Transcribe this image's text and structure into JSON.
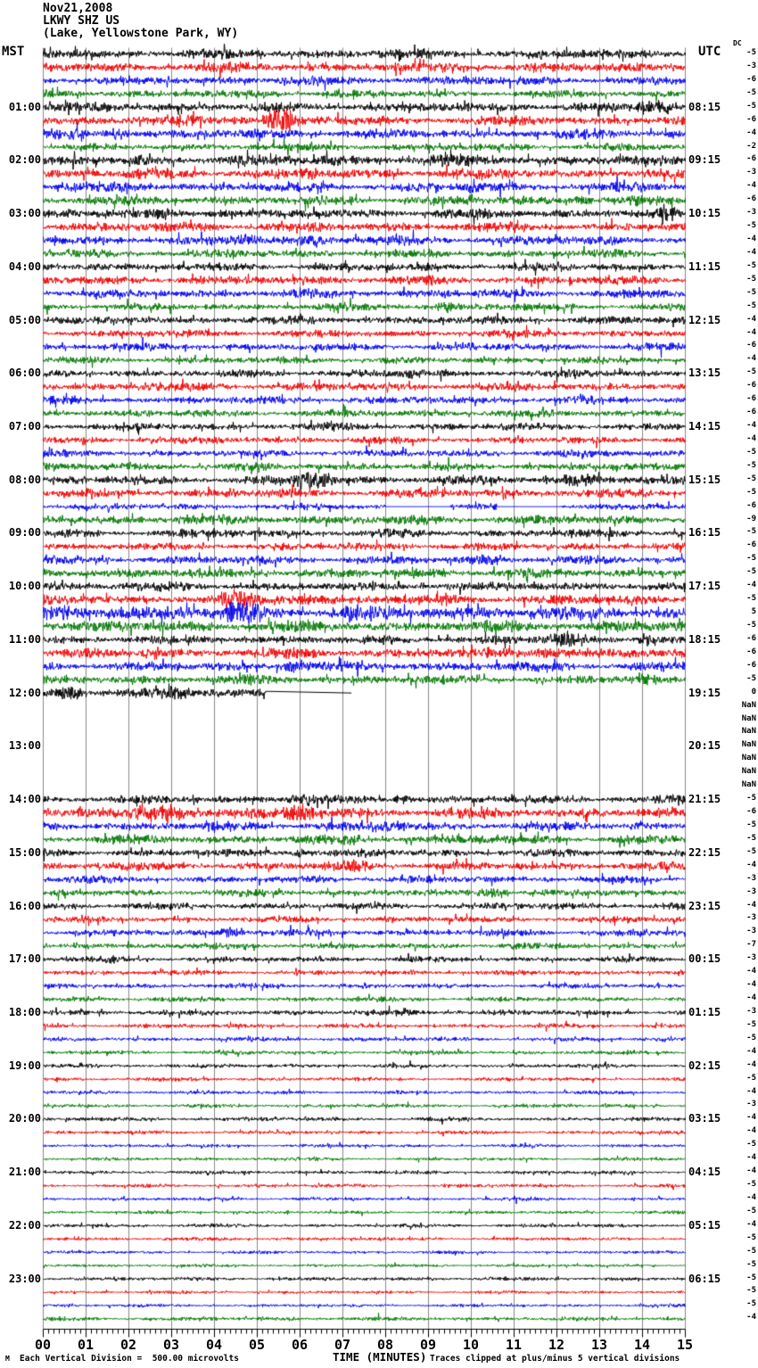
{
  "title": {
    "date": "Nov21,2008",
    "station": "LKWY SHZ US",
    "location": "(Lake, Yellowstone Park, WY)"
  },
  "axes": {
    "left_header": "MST",
    "right_header": "UTC",
    "dc_header": "DC",
    "x_title": "TIME (MINUTES)",
    "x_ticks": [
      "00",
      "01",
      "02",
      "03",
      "04",
      "05",
      "06",
      "07",
      "08",
      "09",
      "10",
      "11",
      "12",
      "13",
      "14",
      "15"
    ]
  },
  "footer": {
    "scale_note": "Each Vertical Division =  500.00 microvolts",
    "clip_note": "Traces clipped at plus/minus 5 vertical divisions",
    "watermark": "M"
  },
  "colors": {
    "trace_cycle": [
      "#000000",
      "#ee0000",
      "#0000ee",
      "#007700"
    ],
    "grid": "#888888",
    "axis": "#000000"
  },
  "chart_data": {
    "type": "line",
    "subtype": "seismogram_helicorder",
    "title": "LKWY SHZ US (Lake, Yellowstone Park, WY) Nov21,2008",
    "xlabel": "TIME (MINUTES)",
    "x_range": [
      0,
      15
    ],
    "minutes_per_line": 15,
    "left_timezone": "MST",
    "right_timezone": "UTC",
    "vertical_division_microvolts": "500.00",
    "clipping": "plus/minus 5 vertical divisions",
    "grid": true,
    "rows": [
      {
        "dc": "-5",
        "amp": 3.2
      },
      {
        "dc": "-3",
        "amp": 3.0
      },
      {
        "dc": "-6",
        "amp": 2.8
      },
      {
        "dc": "-5",
        "amp": 2.4
      },
      {
        "mst": "01:00",
        "utc": "08:15",
        "dc": "-5",
        "amp": 3.0,
        "ev": [
          [
            13.7,
            15,
            5
          ]
        ]
      },
      {
        "dc": "-6",
        "amp": 3.2,
        "ev": [
          [
            4.0,
            5.1,
            2
          ],
          [
            5.1,
            6.0,
            9
          ]
        ]
      },
      {
        "dc": "-4",
        "amp": 3.0,
        "ev": [
          [
            1.3,
            2.1,
            3
          ]
        ]
      },
      {
        "dc": "-2",
        "amp": 2.4
      },
      {
        "mst": "02:00",
        "utc": "09:15",
        "dc": "-6",
        "amp": 3.4
      },
      {
        "dc": "-3",
        "amp": 3.2,
        "ev": [
          [
            5.9,
            6.5,
            3
          ]
        ]
      },
      {
        "dc": "-4",
        "amp": 3.0,
        "ev": [
          [
            9.8,
            10.4,
            4
          ]
        ]
      },
      {
        "dc": "-6",
        "amp": 3.0,
        "ev": [
          [
            12.3,
            12.9,
            4
          ]
        ]
      },
      {
        "mst": "03:00",
        "utc": "10:15",
        "dc": "-3",
        "amp": 3.0,
        "ev": [
          [
            3.8,
            4.4,
            4
          ],
          [
            14.2,
            15,
            4
          ]
        ]
      },
      {
        "dc": "-5",
        "amp": 3.0
      },
      {
        "dc": "-4",
        "amp": 3.0,
        "ev": [
          [
            4.3,
            5.1,
            4
          ],
          [
            5.9,
            6.6,
            4
          ]
        ]
      },
      {
        "dc": "-4",
        "amp": 2.6
      },
      {
        "mst": "04:00",
        "utc": "11:15",
        "dc": "-5",
        "amp": 2.6,
        "ev": [
          [
            8.8,
            9.4,
            3
          ]
        ]
      },
      {
        "dc": "-5",
        "amp": 2.8
      },
      {
        "dc": "-5",
        "amp": 2.6
      },
      {
        "dc": "-5",
        "amp": 2.4,
        "ev": [
          [
            9.2,
            9.8,
            3
          ]
        ]
      },
      {
        "mst": "05:00",
        "utc": "12:15",
        "dc": "-4",
        "amp": 2.6
      },
      {
        "dc": "-4",
        "amp": 2.4
      },
      {
        "dc": "-6",
        "amp": 2.4
      },
      {
        "dc": "-4",
        "amp": 2.2
      },
      {
        "mst": "06:00",
        "utc": "13:15",
        "dc": "-5",
        "amp": 2.4,
        "ev": [
          [
            8.2,
            9.1,
            4
          ]
        ]
      },
      {
        "dc": "-6",
        "amp": 2.6,
        "ev": [
          [
            2.3,
            2.8,
            3
          ]
        ]
      },
      {
        "dc": "-6",
        "amp": 2.4
      },
      {
        "dc": "-6",
        "amp": 2.4
      },
      {
        "mst": "07:00",
        "utc": "14:15",
        "dc": "-4",
        "amp": 2.4
      },
      {
        "dc": "-4",
        "amp": 2.2
      },
      {
        "dc": "-5",
        "amp": 2.2
      },
      {
        "dc": "-5",
        "amp": 2.4
      },
      {
        "mst": "08:00",
        "utc": "15:15",
        "dc": "-5",
        "amp": 2.8,
        "ev": [
          [
            5.8,
            6.9,
            7
          ],
          [
            12.0,
            13.0,
            5
          ]
        ]
      },
      {
        "dc": "-5",
        "amp": 2.8
      },
      {
        "dc": "-6",
        "amp": 2.0,
        "gaps": [
          [
            8.0,
            9.5
          ],
          [
            10.6,
            12.1
          ]
        ]
      },
      {
        "dc": "-9",
        "amp": 3.0
      },
      {
        "mst": "09:00",
        "utc": "16:15",
        "dc": "-5",
        "amp": 2.6
      },
      {
        "dc": "-6",
        "amp": 2.4
      },
      {
        "dc": "-5",
        "amp": 2.6,
        "ev": [
          [
            10.1,
            10.8,
            3
          ]
        ]
      },
      {
        "dc": "-5",
        "amp": 3.0
      },
      {
        "mst": "10:00",
        "utc": "17:15",
        "dc": "-4",
        "amp": 2.8
      },
      {
        "dc": "-5",
        "amp": 3.2,
        "ev": [
          [
            4.0,
            5.2,
            7
          ],
          [
            5.2,
            7.2,
            3
          ]
        ]
      },
      {
        "dc": "5",
        "amp": 4.2,
        "ev": [
          [
            1.3,
            2.5,
            5
          ],
          [
            4.1,
            5.1,
            8
          ],
          [
            6.7,
            7.7,
            4
          ],
          [
            9.9,
            10.6,
            4
          ]
        ]
      },
      {
        "dc": "-5",
        "amp": 3.6
      },
      {
        "mst": "11:00",
        "utc": "18:15",
        "dc": "-6",
        "amp": 2.8,
        "ev": [
          [
            11.6,
            12.7,
            5
          ],
          [
            13.8,
            14.5,
            4
          ]
        ]
      },
      {
        "dc": "-6",
        "amp": 3.2,
        "ev": [
          [
            2.2,
            2.9,
            3
          ],
          [
            11.3,
            12.4,
            4
          ]
        ]
      },
      {
        "dc": "-6",
        "amp": 3.0,
        "ev": [
          [
            5.3,
            6.4,
            4
          ]
        ]
      },
      {
        "dc": "-5",
        "amp": 2.8,
        "ev": [
          [
            13.6,
            14.4,
            4
          ]
        ]
      },
      {
        "mst": "12:00",
        "utc": "19:15",
        "dc": "0",
        "amp": 3.0,
        "ev": [
          [
            0.2,
            1.1,
            5
          ],
          [
            2.5,
            3.5,
            5
          ]
        ],
        "end": 5.2,
        "flat_to": 7.2
      },
      {
        "dc": "NaN",
        "amp": 0,
        "blank": true
      },
      {
        "dc": "NaN",
        "amp": 0,
        "blank": true
      },
      {
        "dc": "NaN",
        "amp": 0,
        "blank": true
      },
      {
        "mst": "13:00",
        "utc": "20:15",
        "dc": "NaN",
        "amp": 0,
        "blank": true
      },
      {
        "dc": "NaN",
        "amp": 0,
        "blank": true
      },
      {
        "dc": "NaN",
        "amp": 0,
        "blank": true
      },
      {
        "dc": "NaN",
        "amp": 0,
        "blank": true
      },
      {
        "mst": "14:00",
        "utc": "21:15",
        "dc": "-5",
        "amp": 2.6,
        "ev": [
          [
            5.7,
            6.5,
            4
          ],
          [
            8.1,
            8.8,
            3
          ],
          [
            14.5,
            15,
            3
          ]
        ]
      },
      {
        "dc": "-6",
        "amp": 3.4,
        "ev": [
          [
            0,
            6.5,
            2.5
          ],
          [
            2.1,
            3.2,
            3
          ],
          [
            5.6,
            6.4,
            5
          ]
        ]
      },
      {
        "dc": "-5",
        "amp": 2.8,
        "ev": [
          [
            3.6,
            4.1,
            3
          ],
          [
            7.6,
            8.5,
            4
          ]
        ]
      },
      {
        "dc": "-5",
        "amp": 2.8,
        "ev": [
          [
            6.9,
            7.5,
            4
          ]
        ]
      },
      {
        "mst": "15:00",
        "utc": "22:15",
        "dc": "-5",
        "amp": 2.4,
        "ev": [
          [
            5.7,
            6.3,
            3
          ]
        ]
      },
      {
        "dc": "-4",
        "amp": 2.6,
        "ev": [
          [
            6.8,
            7.7,
            4
          ]
        ]
      },
      {
        "dc": "-3",
        "amp": 2.2
      },
      {
        "dc": "-3",
        "amp": 2.2,
        "ev": [
          [
            10.1,
            11.0,
            4
          ]
        ]
      },
      {
        "mst": "16:00",
        "utc": "23:15",
        "dc": "-4",
        "amp": 2.2
      },
      {
        "dc": "-3",
        "amp": 2.0
      },
      {
        "dc": "-3",
        "amp": 2.2,
        "ev": [
          [
            4.0,
            4.8,
            4
          ]
        ]
      },
      {
        "dc": "-7",
        "amp": 2.0
      },
      {
        "mst": "17:00",
        "utc": "00:15",
        "dc": "-3",
        "amp": 1.8,
        "ev": [
          [
            1.3,
            1.9,
            3
          ]
        ]
      },
      {
        "dc": "-4",
        "amp": 1.6
      },
      {
        "dc": "-4",
        "amp": 1.6
      },
      {
        "dc": "-4",
        "amp": 1.6
      },
      {
        "mst": "18:00",
        "utc": "01:15",
        "dc": "-3",
        "amp": 1.8,
        "ev": [
          [
            8.1,
            8.7,
            2
          ]
        ]
      },
      {
        "dc": "-5",
        "amp": 1.4
      },
      {
        "dc": "-5",
        "amp": 1.4
      },
      {
        "dc": "-4",
        "amp": 1.3
      },
      {
        "mst": "19:00",
        "utc": "02:15",
        "dc": "-4",
        "amp": 1.3
      },
      {
        "dc": "-5",
        "amp": 1.2
      },
      {
        "dc": "-4",
        "amp": 1.2
      },
      {
        "dc": "-3",
        "amp": 1.2
      },
      {
        "mst": "20:00",
        "utc": "03:15",
        "dc": "-4",
        "amp": 1.3
      },
      {
        "dc": "-4",
        "amp": 1.2
      },
      {
        "dc": "-5",
        "amp": 1.1
      },
      {
        "dc": "-4",
        "amp": 1.1
      },
      {
        "mst": "21:00",
        "utc": "04:15",
        "dc": "-4",
        "amp": 1.2
      },
      {
        "dc": "-5",
        "amp": 1.1
      },
      {
        "dc": "-4",
        "amp": 1.1
      },
      {
        "dc": "-5",
        "amp": 1.0
      },
      {
        "mst": "22:00",
        "utc": "05:15",
        "dc": "-4",
        "amp": 1.2
      },
      {
        "dc": "-5",
        "amp": 1.1
      },
      {
        "dc": "-5",
        "amp": 1.0
      },
      {
        "dc": "-5",
        "amp": 1.0
      },
      {
        "mst": "23:00",
        "utc": "06:15",
        "dc": "-5",
        "amp": 1.2
      },
      {
        "dc": "-5",
        "amp": 1.0
      },
      {
        "dc": "-5",
        "amp": 1.0
      },
      {
        "dc": "-4",
        "amp": 1.3
      }
    ]
  }
}
